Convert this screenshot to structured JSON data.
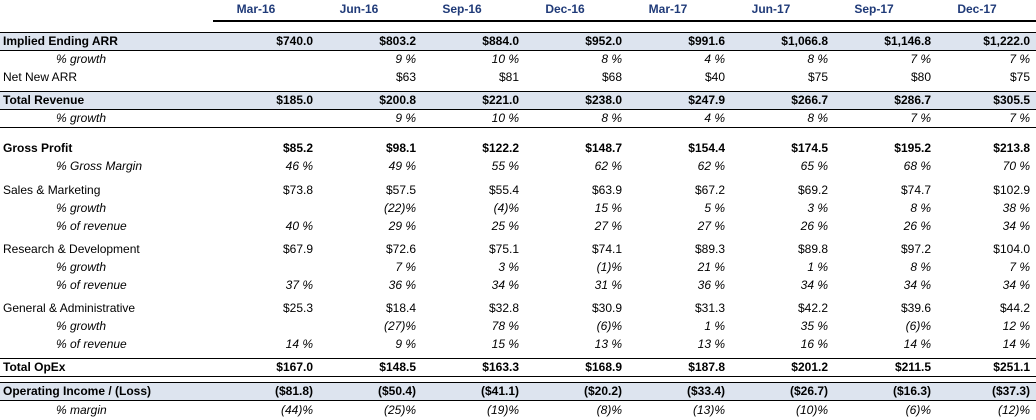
{
  "columns": [
    "Mar-16",
    "Jun-16",
    "Sep-16",
    "Dec-16",
    "Mar-17",
    "Jun-17",
    "Sep-17",
    "Dec-17"
  ],
  "rows": [
    {
      "label": "Implied Ending ARR",
      "values": [
        "$740.0",
        "$803.2",
        "$884.0",
        "$952.0",
        "$991.6",
        "$1,066.8",
        "$1,146.8",
        "$1,222.0"
      ]
    },
    {
      "label": "% growth",
      "values": [
        "",
        "9 %",
        "10 %",
        "8 %",
        "4 %",
        "8 %",
        "7 %",
        "7 %"
      ]
    },
    {
      "label": "Net New ARR",
      "values": [
        "",
        "$63",
        "$81",
        "$68",
        "$40",
        "$75",
        "$80",
        "$75"
      ]
    },
    {
      "label": "Total Revenue",
      "values": [
        "$185.0",
        "$200.8",
        "$221.0",
        "$238.0",
        "$247.9",
        "$266.7",
        "$286.7",
        "$305.5"
      ]
    },
    {
      "label": "% growth",
      "values": [
        "",
        "9 %",
        "10 %",
        "8 %",
        "4 %",
        "8 %",
        "7 %",
        "7 %"
      ]
    },
    {
      "label": "Gross Profit",
      "values": [
        "$85.2",
        "$98.1",
        "$122.2",
        "$148.7",
        "$154.4",
        "$174.5",
        "$195.2",
        "$213.8"
      ]
    },
    {
      "label": "% Gross Margin",
      "values": [
        "46 %",
        "49 %",
        "55 %",
        "62 %",
        "62 %",
        "65 %",
        "68 %",
        "70 %"
      ]
    },
    {
      "label": "Sales & Marketing",
      "values": [
        "$73.8",
        "$57.5",
        "$55.4",
        "$63.9",
        "$67.2",
        "$69.2",
        "$74.7",
        "$102.9"
      ]
    },
    {
      "label": "% growth",
      "values": [
        "",
        "(22)%",
        "(4)%",
        "15 %",
        "5 %",
        "3 %",
        "8 %",
        "38 %"
      ]
    },
    {
      "label": "% of revenue",
      "values": [
        "40 %",
        "29 %",
        "25 %",
        "27 %",
        "27 %",
        "26 %",
        "26 %",
        "34 %"
      ]
    },
    {
      "label": "Research & Development",
      "values": [
        "$67.9",
        "$72.6",
        "$75.1",
        "$74.1",
        "$89.3",
        "$89.8",
        "$97.2",
        "$104.0"
      ]
    },
    {
      "label": "% growth",
      "values": [
        "",
        "7 %",
        "3 %",
        "(1)%",
        "21 %",
        "1 %",
        "8 %",
        "7 %"
      ]
    },
    {
      "label": "% of revenue",
      "values": [
        "37 %",
        "36 %",
        "34 %",
        "31 %",
        "36 %",
        "34 %",
        "34 %",
        "34 %"
      ]
    },
    {
      "label": "General & Administrative",
      "values": [
        "$25.3",
        "$18.4",
        "$32.8",
        "$30.9",
        "$31.3",
        "$42.2",
        "$39.6",
        "$44.2"
      ]
    },
    {
      "label": "% growth",
      "values": [
        "",
        "(27)%",
        "78 %",
        "(6)%",
        "1 %",
        "35 %",
        "(6)%",
        "12 %"
      ]
    },
    {
      "label": "% of revenue",
      "values": [
        "14 %",
        "9 %",
        "15 %",
        "13 %",
        "13 %",
        "16 %",
        "14 %",
        "14 %"
      ]
    },
    {
      "label": "Total OpEx",
      "values": [
        "$167.0",
        "$148.5",
        "$163.3",
        "$168.9",
        "$187.8",
        "$201.2",
        "$211.5",
        "$251.1"
      ]
    },
    {
      "label": "Operating Income / (Loss)",
      "values": [
        "($81.8)",
        "($50.4)",
        "($41.1)",
        "($20.2)",
        "($33.4)",
        "($26.7)",
        "($16.3)",
        "($37.3)"
      ]
    },
    {
      "label": "% margin",
      "values": [
        "(44)%",
        "(25)%",
        "(19)%",
        "(8)%",
        "(13)%",
        "(10)%",
        "(6)%",
        "(12)%"
      ]
    }
  ]
}
